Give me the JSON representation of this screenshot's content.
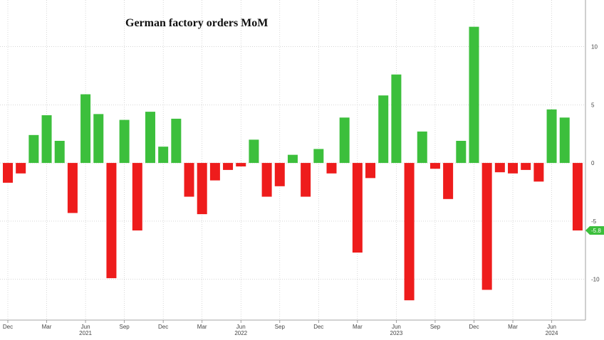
{
  "chart_data": {
    "type": "bar",
    "title": "German factory orders MoM",
    "xlabel": "",
    "ylabel": "",
    "ylim": [
      -13.5,
      14
    ],
    "yticks": [
      10,
      5,
      0,
      -5,
      -10
    ],
    "ytick_labels": [
      "10",
      "5",
      "0",
      "-5",
      "-10"
    ],
    "x_tick_labels": [
      "Dec",
      "Mar",
      "Jun",
      "Sep",
      "Dec",
      "Mar",
      "Jun",
      "Sep",
      "Dec",
      "Mar",
      "Jun",
      "Sep",
      "Dec",
      "Mar",
      "Jun"
    ],
    "x_tick_index": [
      0,
      3,
      6,
      9,
      12,
      15,
      18,
      21,
      24,
      27,
      30,
      33,
      36,
      39,
      42
    ],
    "year_labels": [
      "2021",
      "2022",
      "2023",
      "2024"
    ],
    "year_label_index": [
      6,
      18,
      30,
      42
    ],
    "values": [
      -1.7,
      -0.9,
      2.4,
      4.1,
      1.9,
      -4.3,
      5.9,
      4.2,
      -9.9,
      3.7,
      -5.8,
      4.4,
      1.4,
      3.8,
      -2.9,
      -4.4,
      -1.5,
      -0.6,
      -0.3,
      2.0,
      -2.9,
      -2.0,
      0.7,
      -2.9,
      1.2,
      -0.9,
      3.9,
      -7.7,
      -1.3,
      5.8,
      7.6,
      -11.8,
      2.7,
      -0.5,
      -3.1,
      1.9,
      11.7,
      -10.9,
      -0.8,
      -0.9,
      -0.6,
      -1.6,
      4.6,
      3.9,
      -5.8
    ],
    "last_value_label": "-5.8",
    "colors": {
      "positive": "#3cbf3c",
      "negative": "#ee1c1c",
      "last_badge": "#3cbf3c"
    }
  }
}
